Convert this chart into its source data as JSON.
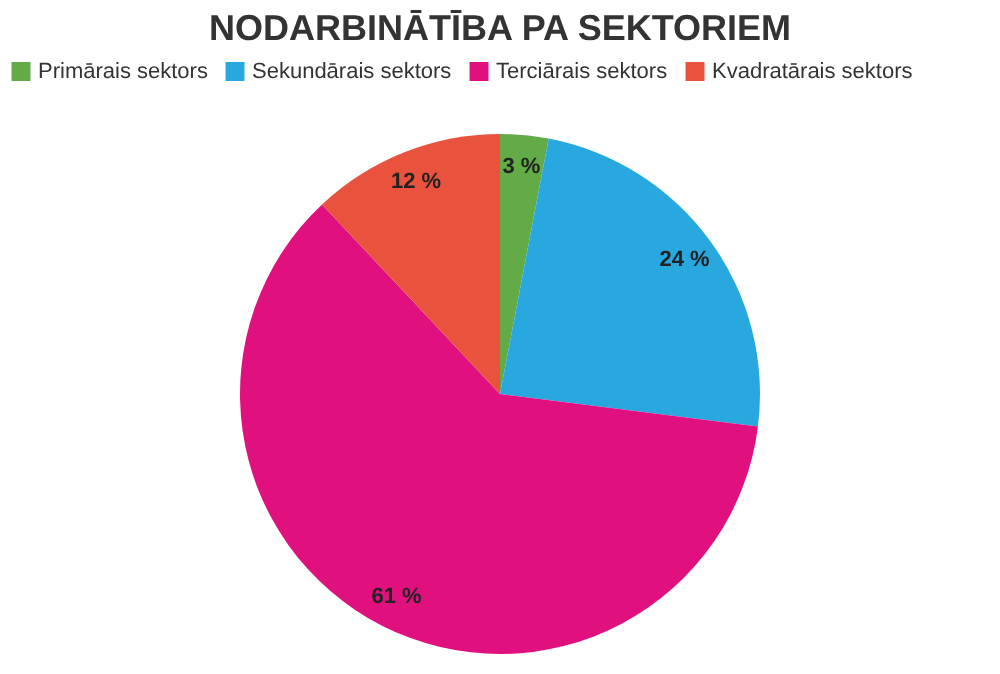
{
  "chart_data": {
    "type": "pie",
    "title": "NODARBINĀTĪBA PA SEKTORIEM",
    "categories": [
      "Primārais sektors",
      "Sekundārais sektors",
      "Terciārais sektors",
      "Kvadratārais sektors"
    ],
    "values": [
      3,
      24,
      61,
      12
    ],
    "colors": [
      "#62ab47",
      "#29a8e0",
      "#e0117e",
      "#e9533e"
    ],
    "value_labels": [
      "3 %",
      "24 %",
      "61 %",
      "12 %"
    ],
    "legend": "top"
  }
}
